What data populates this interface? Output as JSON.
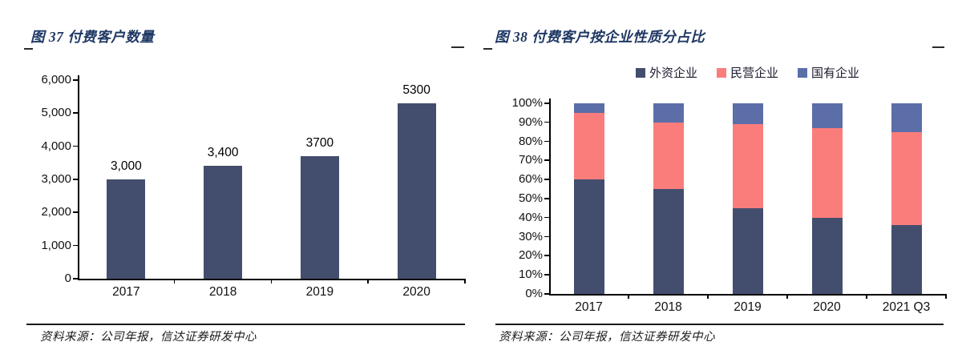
{
  "figure37": {
    "title": "图 37 付费客户数量",
    "source": "资料来源：公司年报，信达证券研发中心"
  },
  "figure38": {
    "title": "图 38 付费客户按企业性质分占比",
    "source": "资料来源：公司年报，信达证券研发中心"
  },
  "colors": {
    "title_navy": "#1F3864",
    "bar_navy": "#434E6E",
    "pink": "#FA7D7B",
    "slate_blue": "#5C6EA8",
    "axis_black": "#000000"
  },
  "chart_data": [
    {
      "id": "chart37",
      "type": "bar",
      "title": "图 37 付费客户数量",
      "categories": [
        "2017",
        "2018",
        "2019",
        "2020"
      ],
      "values": [
        3000,
        3400,
        3700,
        5300
      ],
      "data_labels": [
        "3,000",
        "3,400",
        "3700",
        "5300"
      ],
      "xlabel": "",
      "ylabel": "",
      "ylim": [
        0,
        6000
      ],
      "ytick_interval": 1000,
      "yticks": [
        "6,000",
        "5,000",
        "4,000",
        "3,000",
        "2,000",
        "1,000",
        "0"
      ],
      "bar_color": "#434E6E",
      "grid": false,
      "legend": false
    },
    {
      "id": "chart38",
      "type": "bar",
      "stacked": true,
      "title": "图 38 付费客户按企业性质分占比",
      "categories": [
        "2017",
        "2018",
        "2019",
        "2020",
        "2021 Q3"
      ],
      "series": [
        {
          "name": "外资企业",
          "color": "#434E6E",
          "values": [
            60,
            55,
            45,
            40,
            36
          ]
        },
        {
          "name": "民营企业",
          "color": "#FA7D7B",
          "values": [
            35,
            35,
            44,
            47,
            49
          ]
        },
        {
          "name": "国有企业",
          "color": "#5C6EA8",
          "values": [
            5,
            10,
            11,
            13,
            15
          ]
        }
      ],
      "xlabel": "",
      "ylabel": "",
      "ylim": [
        0,
        100
      ],
      "yticks": [
        "100%",
        "90%",
        "80%",
        "70%",
        "60%",
        "50%",
        "40%",
        "30%",
        "20%",
        "10%",
        "0%"
      ],
      "legend_position": "top",
      "grid": false
    }
  ]
}
